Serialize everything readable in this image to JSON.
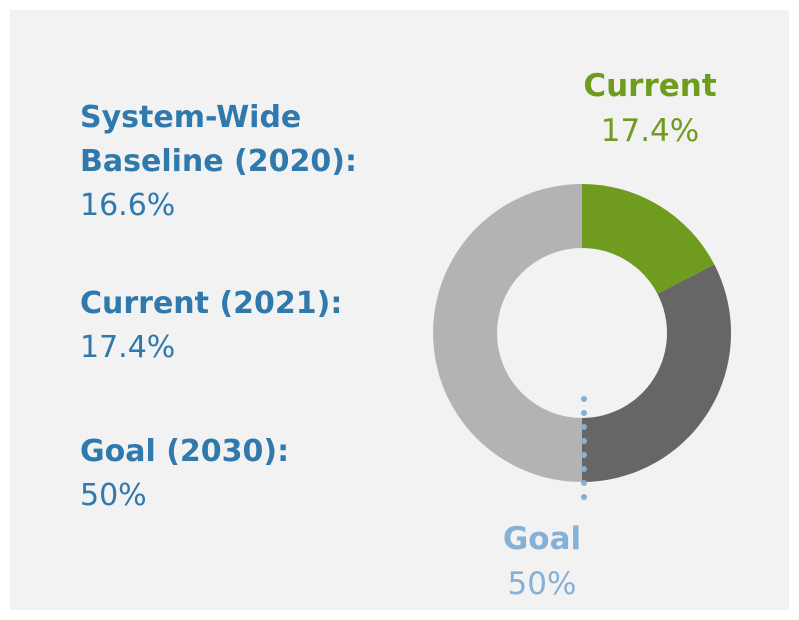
{
  "chart_data": {
    "type": "pie",
    "donut": true,
    "values": [
      17.4,
      32.6,
      50
    ],
    "colors": [
      "#6f9c1e",
      "#666666",
      "#b3b3b3"
    ],
    "annotations": [
      {
        "title": "Current",
        "text": "17.4%",
        "color": "#6f9c1e"
      },
      {
        "title": "Goal",
        "text": "50%",
        "color": "#86b1d6"
      }
    ]
  },
  "stats": [
    {
      "label": "System-Wide Baseline (2020):",
      "value": "16.6%"
    },
    {
      "label": "Current (2021):",
      "value": "17.4%"
    },
    {
      "label": "Goal (2030):",
      "value": "50%"
    }
  ]
}
